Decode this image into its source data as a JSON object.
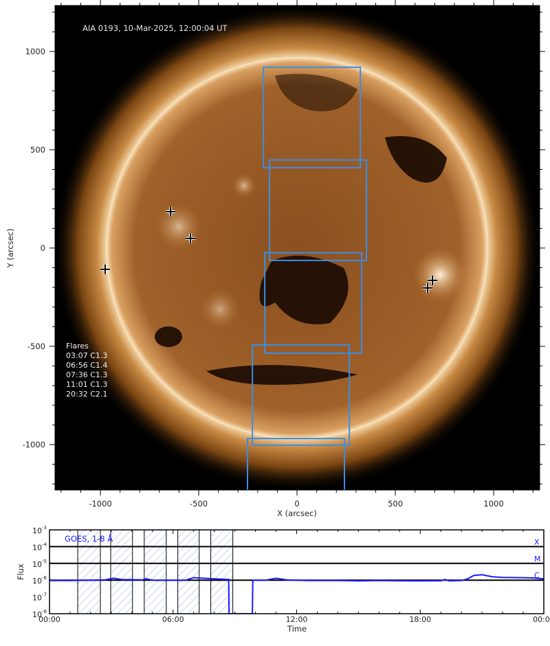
{
  "chart_data": [
    {
      "type": "image",
      "title": "AIA 0193, 10-Mar-2025, 12:00:04 UT",
      "xlabel": "X (arcsec)",
      "ylabel": "Y (arcsec)",
      "xlim": [
        -1231,
        1234
      ],
      "ylim": [
        -1231,
        1234
      ],
      "xticks": [
        -1000,
        -500,
        0,
        500,
        1000
      ],
      "yticks": [
        -1000,
        -500,
        0,
        500,
        1000
      ],
      "tick_labels_x": [
        "-1000",
        "-500",
        "0",
        "500",
        "1000"
      ],
      "tick_labels_y": [
        "-1000",
        "-500",
        "0",
        "500",
        "1000"
      ],
      "colormap": "sdoaia193",
      "box_color": "#3a8ee6",
      "fov_boxes": [
        {
          "x": [
            -171,
            322
          ],
          "y": [
            409,
            920
          ]
        },
        {
          "x": [
            -140,
            353
          ],
          "y": [
            -63,
            448
          ]
        },
        {
          "x": [
            -164,
            329
          ],
          "y": [
            -535,
            -24
          ]
        },
        {
          "x": [
            -227,
            266
          ],
          "y": [
            -1003,
            -493
          ]
        },
        {
          "x": [
            -252,
            241
          ],
          "y": [
            -1480,
            -969
          ]
        }
      ],
      "flare_markers": [
        {
          "x": -643,
          "y": 185
        },
        {
          "x": -542,
          "y": 49
        },
        {
          "x": -976,
          "y": -108
        },
        {
          "x": 689,
          "y": -164
        },
        {
          "x": 664,
          "y": -203
        }
      ],
      "flares_legend": {
        "title": "Flares",
        "entries": [
          "03:07 C1.3",
          "06:56 C1.4",
          "07:36 C1.3",
          "11:01 C1.3",
          "20:32 C2.1"
        ]
      }
    },
    {
      "type": "line",
      "xlabel": "Time",
      "ylabel": "Flux",
      "xlim": [
        0,
        24
      ],
      "ylim": [
        1e-08,
        0.001
      ],
      "yscale": "log",
      "xtick_labels": [
        "00:00",
        "06:00",
        "12:00",
        "18:00",
        "00:00"
      ],
      "ytick_exponents": [
        "-8",
        "-7",
        "-6",
        "-5",
        "-4",
        "-3"
      ],
      "class_lines": [
        {
          "label": "X",
          "flux": 0.0001
        },
        {
          "label": "M",
          "flux": 1e-05
        },
        {
          "label": "C",
          "flux": 1e-06
        }
      ],
      "hatched_intervals_hours": [
        [
          1.37,
          2.47
        ],
        [
          2.97,
          4.03
        ],
        [
          4.6,
          5.67
        ],
        [
          6.23,
          7.27
        ],
        [
          7.83,
          8.9
        ]
      ],
      "series": [
        {
          "name": "GOES, 1-8 Å",
          "color": "#1a1aff",
          "points": [
            [
              0,
              9.5e-07
            ],
            [
              1,
              9.5e-07
            ],
            [
              2,
              1e-06
            ],
            [
              2.7,
              1.05e-06
            ],
            [
              3.1,
              1.3e-06
            ],
            [
              3.5,
              1.1e-06
            ],
            [
              4.5,
              1.05e-06
            ],
            [
              4.7,
              1.2e-06
            ],
            [
              5,
              1e-06
            ],
            [
              6,
              9.8e-07
            ],
            [
              6.6,
              1e-06
            ],
            [
              7.0,
              1.4e-06
            ],
            [
              7.5,
              1.3e-06
            ],
            [
              8,
              1.2e-06
            ],
            [
              8.7,
              1.1e-06
            ],
            [
              8.72,
              1e-08
            ],
            [
              9.85,
              1e-08
            ],
            [
              9.87,
              1e-06
            ],
            [
              10.5,
              1e-06
            ],
            [
              11.0,
              1.3e-06
            ],
            [
              11.5,
              1.05e-06
            ],
            [
              12.5,
              9.5e-07
            ],
            [
              14,
              9.5e-07
            ],
            [
              15,
              9e-07
            ],
            [
              16,
              9.5e-07
            ],
            [
              17,
              9.2e-07
            ],
            [
              18,
              9e-07
            ],
            [
              19,
              9.2e-07
            ],
            [
              19.2,
              1.1e-06
            ],
            [
              19.4,
              9e-07
            ],
            [
              20,
              9.5e-07
            ],
            [
              20.3,
              1.2e-06
            ],
            [
              20.6,
              1.9e-06
            ],
            [
              21,
              2.1e-06
            ],
            [
              21.5,
              1.6e-06
            ],
            [
              22,
              1.45e-06
            ],
            [
              23,
              1.4e-06
            ],
            [
              23.5,
              1.35e-06
            ],
            [
              24,
              1.2e-06
            ]
          ]
        }
      ]
    }
  ]
}
